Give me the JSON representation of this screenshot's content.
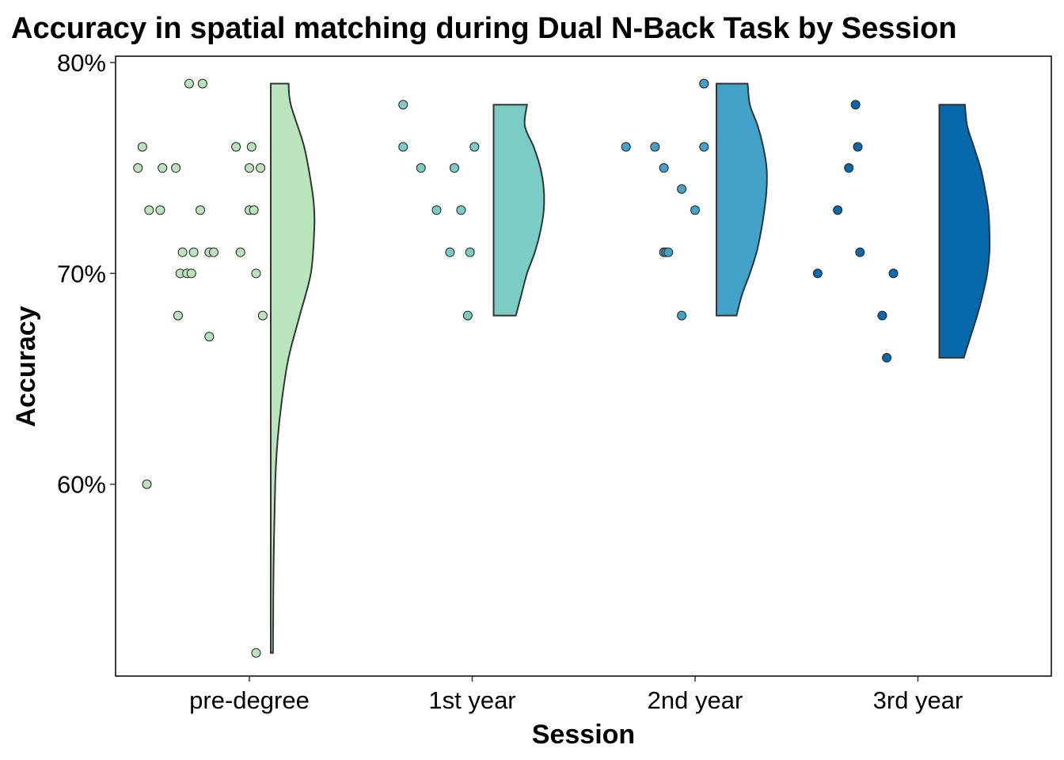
{
  "chart_data": {
    "type": "raincloud",
    "title": "Accuracy in spatial matching during Dual N-Back Task by Session",
    "xlabel": "Session",
    "ylabel": "Accuracy",
    "categories": [
      "pre-degree",
      "1st year",
      "2nd year",
      "3rd year"
    ],
    "colors": [
      "#bae4bc",
      "#7bccc4",
      "#43a2ca",
      "#0868ac"
    ],
    "ylim": [
      0.509,
      0.803
    ],
    "yticks": [
      0.6,
      0.7,
      0.8
    ],
    "ytick_labels": [
      "60%",
      "70%",
      "80%"
    ],
    "grid": false,
    "legend": "none",
    "series": [
      {
        "category": "pre-degree",
        "points": [
          {
            "jitter": 0.73,
            "y": 0.79
          },
          {
            "jitter": 0.79,
            "y": 0.79
          },
          {
            "jitter": 0.52,
            "y": 0.76
          },
          {
            "jitter": 0.94,
            "y": 0.76
          },
          {
            "jitter": 1.01,
            "y": 0.76
          },
          {
            "jitter": 0.5,
            "y": 0.75
          },
          {
            "jitter": 0.61,
            "y": 0.75
          },
          {
            "jitter": 0.67,
            "y": 0.75
          },
          {
            "jitter": 1.0,
            "y": 0.75
          },
          {
            "jitter": 1.05,
            "y": 0.75
          },
          {
            "jitter": 0.55,
            "y": 0.73
          },
          {
            "jitter": 0.6,
            "y": 0.73
          },
          {
            "jitter": 0.78,
            "y": 0.73
          },
          {
            "jitter": 1.0,
            "y": 0.73
          },
          {
            "jitter": 1.02,
            "y": 0.73
          },
          {
            "jitter": 0.7,
            "y": 0.71
          },
          {
            "jitter": 0.75,
            "y": 0.71
          },
          {
            "jitter": 0.82,
            "y": 0.71
          },
          {
            "jitter": 0.84,
            "y": 0.71
          },
          {
            "jitter": 0.96,
            "y": 0.71
          },
          {
            "jitter": 0.69,
            "y": 0.7
          },
          {
            "jitter": 0.72,
            "y": 0.7
          },
          {
            "jitter": 0.74,
            "y": 0.7
          },
          {
            "jitter": 1.03,
            "y": 0.7
          },
          {
            "jitter": 0.68,
            "y": 0.68
          },
          {
            "jitter": 1.06,
            "y": 0.68
          },
          {
            "jitter": 0.82,
            "y": 0.67
          },
          {
            "jitter": 0.54,
            "y": 0.6
          },
          {
            "jitter": 1.03,
            "y": 0.52
          }
        ],
        "density": {
          "y": [
            0.52,
            0.56,
            0.6,
            0.62,
            0.64,
            0.66,
            0.68,
            0.7,
            0.72,
            0.73,
            0.74,
            0.76,
            0.78,
            0.79
          ],
          "width": [
            0.02,
            0.025,
            0.04,
            0.06,
            0.1,
            0.16,
            0.26,
            0.36,
            0.39,
            0.39,
            0.37,
            0.3,
            0.18,
            0.16
          ]
        }
      },
      {
        "category": "1st year",
        "points": [
          {
            "jitter": 1.69,
            "y": 0.78
          },
          {
            "jitter": 1.69,
            "y": 0.76
          },
          {
            "jitter": 2.01,
            "y": 0.76
          },
          {
            "jitter": 1.77,
            "y": 0.75
          },
          {
            "jitter": 1.92,
            "y": 0.75
          },
          {
            "jitter": 1.84,
            "y": 0.73
          },
          {
            "jitter": 1.95,
            "y": 0.73
          },
          {
            "jitter": 1.9,
            "y": 0.71
          },
          {
            "jitter": 1.99,
            "y": 0.71
          },
          {
            "jitter": 1.98,
            "y": 0.68
          }
        ],
        "density": {
          "y": [
            0.68,
            0.69,
            0.7,
            0.71,
            0.72,
            0.73,
            0.74,
            0.75,
            0.76,
            0.77,
            0.78
          ],
          "width": [
            0.2,
            0.25,
            0.3,
            0.37,
            0.42,
            0.45,
            0.45,
            0.42,
            0.36,
            0.28,
            0.3
          ]
        }
      },
      {
        "category": "2nd year",
        "points": [
          {
            "jitter": 3.04,
            "y": 0.79
          },
          {
            "jitter": 3.04,
            "y": 0.79
          },
          {
            "jitter": 2.69,
            "y": 0.76
          },
          {
            "jitter": 2.82,
            "y": 0.76
          },
          {
            "jitter": 3.04,
            "y": 0.76
          },
          {
            "jitter": 2.86,
            "y": 0.75
          },
          {
            "jitter": 2.94,
            "y": 0.74
          },
          {
            "jitter": 3.0,
            "y": 0.73
          },
          {
            "jitter": 2.86,
            "y": 0.71
          },
          {
            "jitter": 2.87,
            "y": 0.71
          },
          {
            "jitter": 2.88,
            "y": 0.71
          },
          {
            "jitter": 2.94,
            "y": 0.68
          }
        ],
        "density": {
          "y": [
            0.68,
            0.69,
            0.7,
            0.71,
            0.72,
            0.73,
            0.74,
            0.75,
            0.76,
            0.77,
            0.78,
            0.79
          ],
          "width": [
            0.18,
            0.23,
            0.3,
            0.36,
            0.4,
            0.43,
            0.45,
            0.45,
            0.42,
            0.37,
            0.3,
            0.28
          ]
        }
      },
      {
        "category": "3rd year",
        "points": [
          {
            "jitter": 3.72,
            "y": 0.78
          },
          {
            "jitter": 3.73,
            "y": 0.76
          },
          {
            "jitter": 3.69,
            "y": 0.75
          },
          {
            "jitter": 3.64,
            "y": 0.73
          },
          {
            "jitter": 3.74,
            "y": 0.71
          },
          {
            "jitter": 3.55,
            "y": 0.7
          },
          {
            "jitter": 3.89,
            "y": 0.7
          },
          {
            "jitter": 3.84,
            "y": 0.68
          },
          {
            "jitter": 3.86,
            "y": 0.66
          }
        ],
        "density": {
          "y": [
            0.66,
            0.67,
            0.68,
            0.69,
            0.7,
            0.71,
            0.72,
            0.73,
            0.74,
            0.75,
            0.76,
            0.77,
            0.78
          ],
          "width": [
            0.22,
            0.28,
            0.34,
            0.39,
            0.43,
            0.45,
            0.45,
            0.44,
            0.41,
            0.37,
            0.31,
            0.25,
            0.23
          ]
        }
      }
    ]
  }
}
